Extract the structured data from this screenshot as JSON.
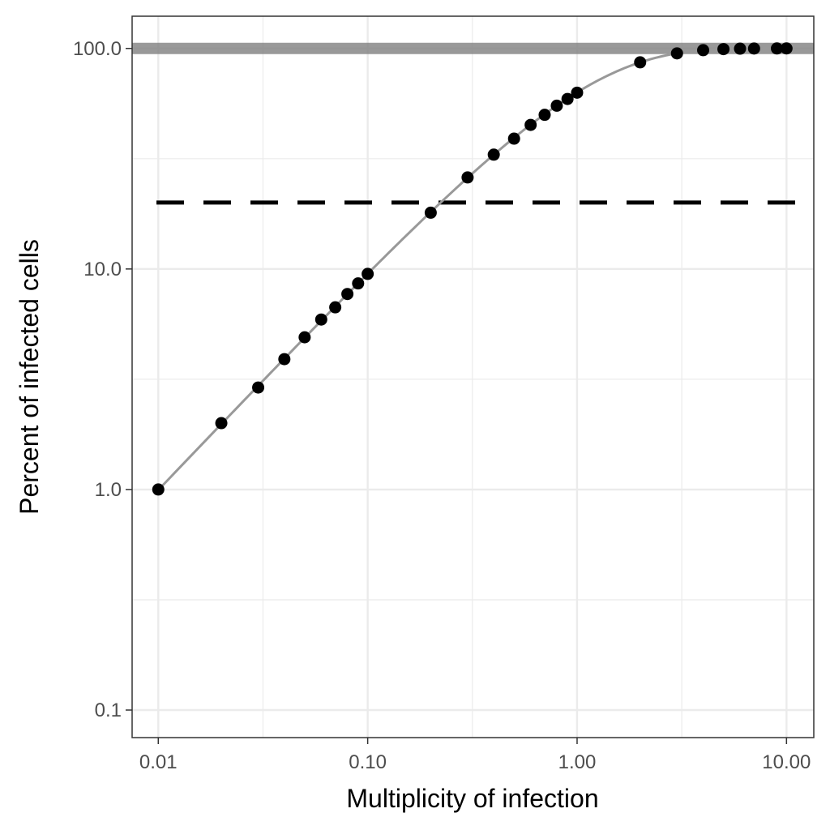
{
  "chart_data": {
    "type": "scatter",
    "title": "",
    "xlabel": "Multiplicity of infection",
    "ylabel": "Percent of infected cells",
    "x_scale": "log10",
    "y_scale": "log10",
    "xlim": [
      0.0075,
      13.5
    ],
    "ylim": [
      0.075,
      140
    ],
    "x_ticks": [
      {
        "value": 0.01,
        "label": "0.01"
      },
      {
        "value": 0.1,
        "label": "0.10"
      },
      {
        "value": 1,
        "label": "1.00"
      },
      {
        "value": 10,
        "label": "10.00"
      }
    ],
    "y_ticks": [
      {
        "value": 0.1,
        "label": "0.1"
      },
      {
        "value": 1,
        "label": "1.0"
      },
      {
        "value": 10,
        "label": "10.0"
      },
      {
        "value": 100,
        "label": "100.0"
      }
    ],
    "grid": true,
    "points": {
      "x": [
        0.01,
        0.02,
        0.03,
        0.04,
        0.05,
        0.06,
        0.07,
        0.08,
        0.09,
        0.1,
        0.2,
        0.3,
        0.4,
        0.5,
        0.6,
        0.7,
        0.8,
        0.9,
        1,
        2,
        3,
        4,
        5,
        6,
        7,
        9,
        10
      ],
      "y": [
        1.0,
        2.0,
        2.9,
        3.9,
        4.9,
        5.9,
        6.7,
        7.7,
        8.6,
        9.5,
        18,
        26,
        33,
        39,
        45,
        50,
        55,
        59,
        63,
        86.5,
        95,
        98.2,
        99.3,
        99.75,
        99.9,
        99.99,
        100
      ]
    },
    "fit_curve": "100 * (1 - exp(-x))",
    "reference_lines": [
      {
        "axis": "y",
        "value": 100,
        "style": "solid",
        "color": "#7f7f7f"
      },
      {
        "axis": "y",
        "value": 20,
        "style": "dashed",
        "color": "#000000"
      }
    ],
    "colors": {
      "points": "#000000",
      "curve": "#999999",
      "grid": "#ebebeb",
      "panel_border": "#333333"
    }
  }
}
